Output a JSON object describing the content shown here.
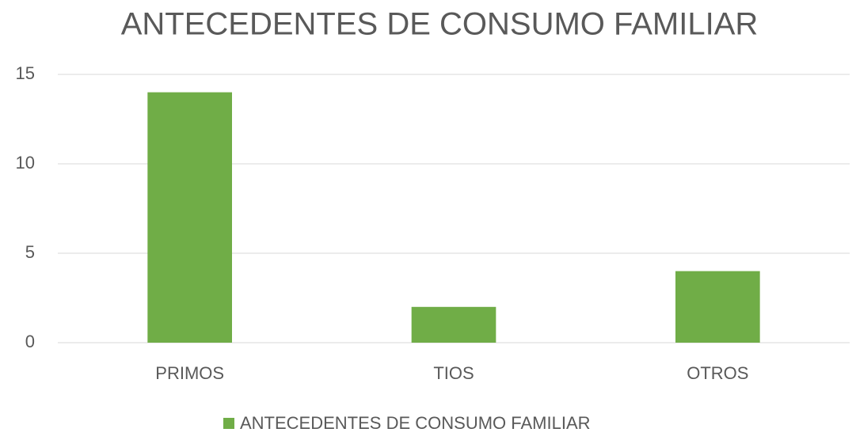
{
  "chart_data": {
    "type": "bar",
    "title": "ANTECEDENTES DE CONSUMO FAMILIAR",
    "categories": [
      "PRIMOS",
      "TIOS",
      "OTROS"
    ],
    "series": [
      {
        "name": "ANTECEDENTES DE CONSUMO FAMILIAR",
        "color": "#70ad47",
        "values": [
          14,
          2,
          4
        ]
      }
    ],
    "ylim": [
      0,
      15
    ],
    "yticks": [
      0,
      5,
      10,
      15
    ],
    "grid": true,
    "legend": "bottom"
  }
}
